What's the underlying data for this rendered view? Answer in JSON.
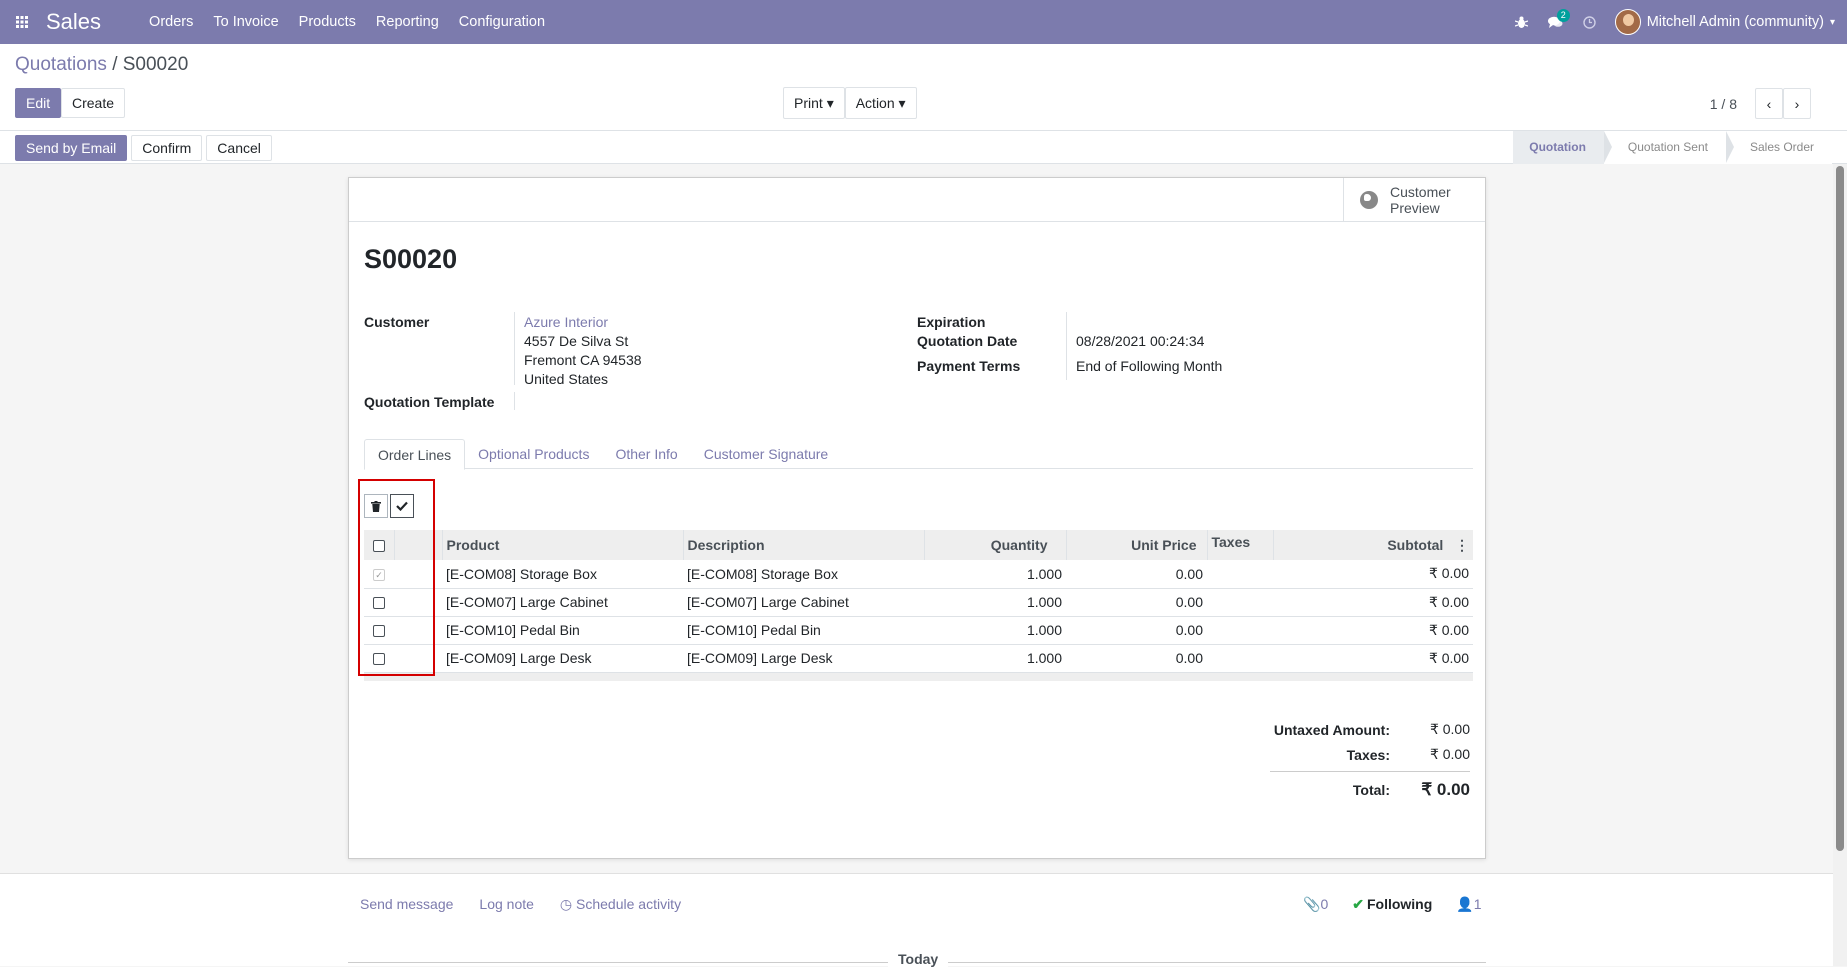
{
  "navbar": {
    "brand": "Sales",
    "menu": [
      "Orders",
      "To Invoice",
      "Products",
      "Reporting",
      "Configuration"
    ],
    "message_count": "2",
    "user": "Mitchell Admin (community)"
  },
  "breadcrumb": {
    "parent": "Quotations",
    "separator": "/",
    "current": "S00020"
  },
  "toolbar": {
    "edit": "Edit",
    "create": "Create",
    "print": "Print",
    "action": "Action",
    "pager": "1 / 8"
  },
  "status_actions": {
    "send_email": "Send by Email",
    "confirm": "Confirm",
    "cancel": "Cancel"
  },
  "stages": [
    "Quotation",
    "Quotation Sent",
    "Sales Order"
  ],
  "sheet": {
    "preview_line1": "Customer",
    "preview_line2": "Preview",
    "title": "S00020",
    "customer_label": "Customer",
    "customer_name": "Azure Interior",
    "address1": "4557 De Silva St",
    "address2": "Fremont CA 94538",
    "address3": "United States",
    "template_label": "Quotation Template",
    "expiration_label": "Expiration",
    "date_label": "Quotation Date",
    "date_value": "08/28/2021 00:24:34",
    "terms_label": "Payment Terms",
    "terms_value": "End of Following Month"
  },
  "tabs": [
    "Order Lines",
    "Optional Products",
    "Other Info",
    "Customer Signature"
  ],
  "lines_table": {
    "headers": [
      "Product",
      "Description",
      "Quantity",
      "Unit Price",
      "Taxes",
      "Subtotal"
    ],
    "rows": [
      {
        "product": "[E-COM08] Storage Box",
        "description": "[E-COM08] Storage Box",
        "quantity": "1.000",
        "unit_price": "0.00",
        "taxes": "",
        "subtotal": "₹ 0.00",
        "checked": true
      },
      {
        "product": "[E-COM07] Large Cabinet",
        "description": "[E-COM07] Large Cabinet",
        "quantity": "1.000",
        "unit_price": "0.00",
        "taxes": "",
        "subtotal": "₹ 0.00",
        "checked": false
      },
      {
        "product": "[E-COM10] Pedal Bin",
        "description": "[E-COM10] Pedal Bin",
        "quantity": "1.000",
        "unit_price": "0.00",
        "taxes": "",
        "subtotal": "₹ 0.00",
        "checked": false
      },
      {
        "product": "[E-COM09] Large Desk",
        "description": "[E-COM09] Large Desk",
        "quantity": "1.000",
        "unit_price": "0.00",
        "taxes": "",
        "subtotal": "₹ 0.00",
        "checked": false
      }
    ]
  },
  "totals": {
    "untaxed_label": "Untaxed Amount:",
    "untaxed_value": "₹ 0.00",
    "taxes_label": "Taxes:",
    "taxes_value": "₹ 0.00",
    "total_label": "Total:",
    "total_value": "₹ 0.00"
  },
  "chatter": {
    "send_message": "Send message",
    "log_note": "Log note",
    "schedule_activity": "Schedule activity",
    "attachments": "0",
    "following": "Following",
    "followers": "1",
    "today": "Today"
  },
  "colors": {
    "brand": "#7c7bad",
    "highlight": "#d40000"
  }
}
